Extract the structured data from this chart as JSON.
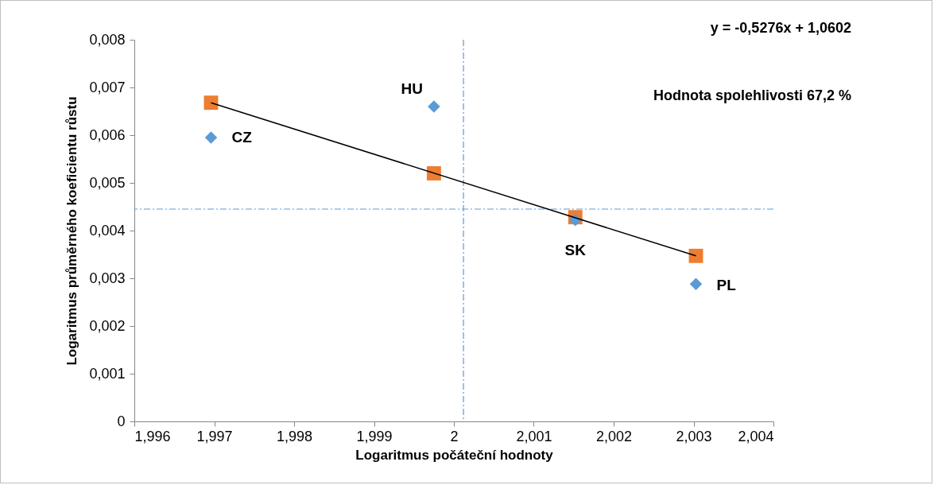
{
  "chart_data": {
    "type": "scatter",
    "xlabel": "Logaritmus počáteční hodnoty",
    "ylabel": "Logaritmus průměrného koeficientu růstu",
    "xlim": [
      1.996,
      2.004
    ],
    "xticks": [
      {
        "value": 1.996,
        "label": "1,996"
      },
      {
        "value": 1.997,
        "label": "1,997"
      },
      {
        "value": 1.998,
        "label": "1,998"
      },
      {
        "value": 1.999,
        "label": "1,999"
      },
      2,
      {
        "value": 2.001,
        "label": "2,001"
      },
      {
        "value": 2.002,
        "label": "2,002"
      },
      {
        "value": 2.003,
        "label": "2,003"
      },
      {
        "value": 2.004,
        "label": "2,004"
      }
    ],
    "ylim": [
      0,
      0.008
    ],
    "yticks": [
      0,
      {
        "value": 0.001,
        "label": "0,001"
      },
      {
        "value": 0.002,
        "label": "0,002"
      },
      {
        "value": 0.003,
        "label": "0,003"
      },
      {
        "value": 0.004,
        "label": "0,004"
      },
      {
        "value": 0.005,
        "label": "0,005"
      },
      {
        "value": 0.006,
        "label": "0,006"
      },
      {
        "value": 0.007,
        "label": "0,007"
      },
      {
        "value": 0.008,
        "label": "0,008"
      }
    ],
    "grid": false,
    "series": [
      {
        "marker": "square",
        "color": "#ed7d31",
        "x": [
          1.99696,
          1.99975,
          2.00152,
          2.00303
        ],
        "values": [
          0.00668,
          0.0052,
          0.00428,
          0.00347
        ]
      },
      {
        "marker": "diamond",
        "color": "#5b9bd5",
        "x": [
          1.99696,
          1.99975,
          2.00152,
          2.00303
        ],
        "values": [
          0.00595,
          0.0066,
          0.00422,
          0.00288
        ]
      },
      {
        "type": "line",
        "marker": "none",
        "line_style": "solid",
        "color": "#000000",
        "x": [
          1.99696,
          2.00303
        ],
        "values": [
          0.00668,
          0.00347
        ]
      }
    ],
    "ref_lines": [
      {
        "axis": "x",
        "value": 2.00012,
        "color": "#5b9bd5",
        "line_style": "dashed"
      },
      {
        "axis": "y",
        "value": 0.00445,
        "color": "#5b9bd5",
        "line_style": "dashed"
      }
    ],
    "annotations": [
      {
        "text": "CZ",
        "x": 1.99696,
        "y": 0.00595
      },
      {
        "text": "HU",
        "x": 1.99975,
        "y": 0.0066
      },
      {
        "text": "SK",
        "x": 2.00152,
        "y": 0.00422
      },
      {
        "text": "PL",
        "x": 2.00303,
        "y": 0.00288
      },
      "y = -0,5276x + 1,0602",
      "Hodnota spolehlivosti 67,2 %"
    ]
  }
}
